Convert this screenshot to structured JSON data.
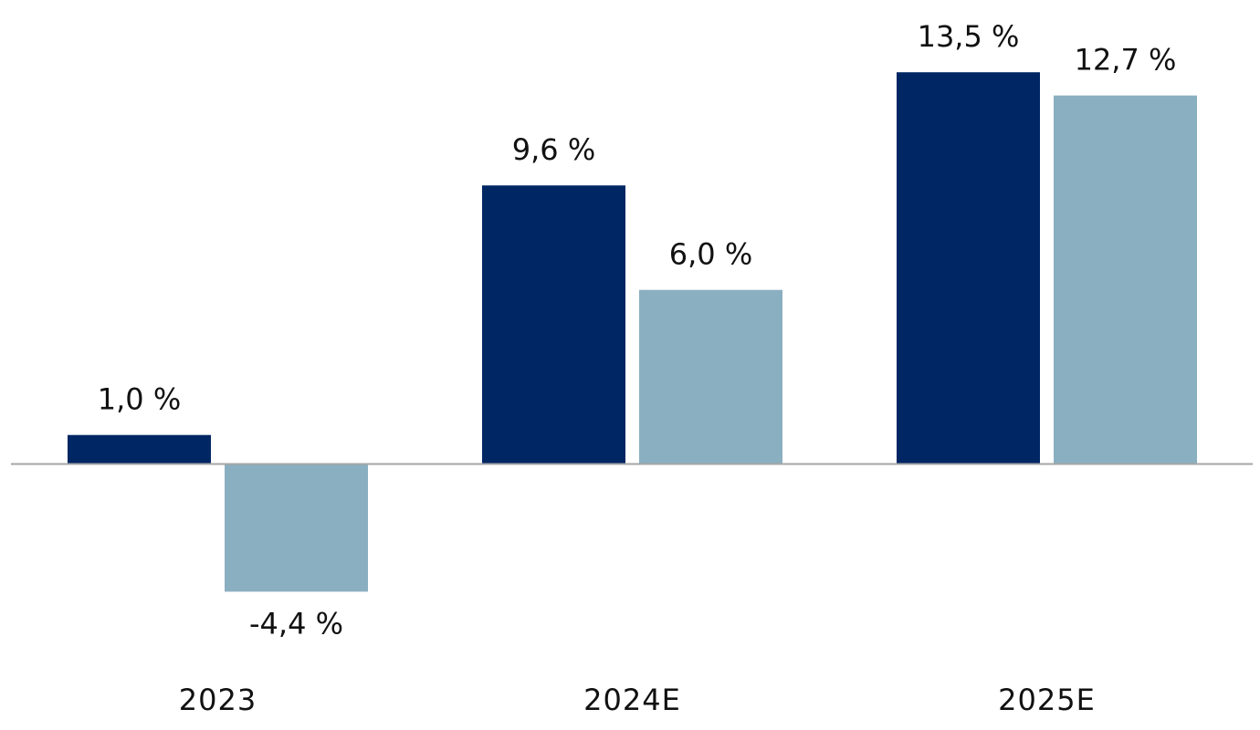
{
  "chart_data": {
    "type": "bar",
    "categories": [
      "2023",
      "2024E",
      "2025E"
    ],
    "series": [
      {
        "values": [
          1.0,
          9.6,
          13.5
        ],
        "labels": [
          "1,0 %",
          "9,6 %",
          "13,5 %"
        ]
      },
      {
        "values": [
          -4.4,
          6.0,
          12.7
        ],
        "labels": [
          "-4,4 %",
          "6,0 %",
          "12,7 %"
        ]
      }
    ],
    "colors": [
      "#002664",
      "#8aafc0"
    ],
    "axis_color": "#a6a6a6",
    "ylim": [
      -6.2,
      15.8
    ],
    "grid": false,
    "legend": "none",
    "title": "",
    "xlabel": "",
    "ylabel": ""
  }
}
